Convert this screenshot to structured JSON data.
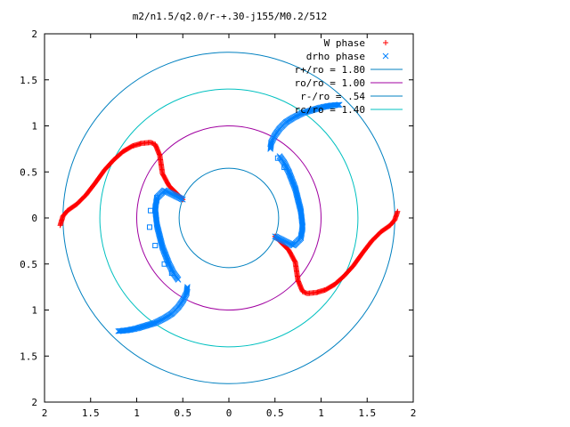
{
  "chart_data": {
    "type": "scatter",
    "title": "m2/n1.5/q2.0/r-+.30-j155/M0.2/512",
    "xlabel": "",
    "ylabel": "",
    "xlim": [
      -2,
      2
    ],
    "ylim": [
      -2,
      2
    ],
    "x_tick_values": [
      -2,
      -1.5,
      -1,
      -0.5,
      0,
      0.5,
      1,
      1.5,
      2
    ],
    "x_tick_labels": [
      "2",
      "1.5",
      "1",
      "0.5",
      "0",
      "0.5",
      "1",
      "1.5",
      "2"
    ],
    "y_tick_values": [
      2,
      1.5,
      1,
      0.5,
      0,
      -0.5,
      -1,
      -1.5,
      -2
    ],
    "y_tick_labels": [
      "2",
      "1.5",
      "1",
      "0.5",
      "0",
      "0.5",
      "1",
      "1.5",
      "2"
    ],
    "grid": false,
    "legend_position": "top-right",
    "legend": [
      {
        "label": "W phase",
        "marker": "plus",
        "color": "#ff0000"
      },
      {
        "label": "drho phase",
        "marker": "x",
        "color": "#0080ff"
      },
      {
        "label": "r+/ro = 1.80",
        "marker": "line",
        "color": "#0080c0"
      },
      {
        "label": "ro/ro = 1.00",
        "marker": "line",
        "color": "#a000a0"
      },
      {
        "label": "r-/ro = .54",
        "marker": "line",
        "color": "#0080c0"
      },
      {
        "label": "rc/ro = 1.40",
        "marker": "line",
        "color": "#00c0c0"
      }
    ],
    "circles": [
      {
        "radius": 1.8,
        "color": "#0080c0"
      },
      {
        "radius": 1.4,
        "color": "#00c0c0"
      },
      {
        "radius": 1.0,
        "color": "#a000a0"
      },
      {
        "radius": 0.54,
        "color": "#0080c0"
      }
    ],
    "series": [
      {
        "name": "W phase",
        "marker": "plus",
        "color": "#ff0000",
        "points": [
          [
            -1.83,
            -0.08
          ],
          [
            -1.8,
            0.02
          ],
          [
            -1.75,
            0.08
          ],
          [
            -1.65,
            0.15
          ],
          [
            -1.55,
            0.25
          ],
          [
            -1.45,
            0.38
          ],
          [
            -1.35,
            0.52
          ],
          [
            -1.25,
            0.63
          ],
          [
            -1.15,
            0.72
          ],
          [
            -1.05,
            0.78
          ],
          [
            -0.95,
            0.81
          ],
          [
            -0.85,
            0.82
          ],
          [
            -0.8,
            0.8
          ],
          [
            -0.75,
            0.68
          ],
          [
            -0.72,
            0.48
          ],
          [
            -0.65,
            0.35
          ],
          [
            -0.58,
            0.28
          ],
          [
            -0.5,
            0.2
          ],
          [
            1.83,
            0.07
          ],
          [
            1.8,
            -0.02
          ],
          [
            1.75,
            -0.08
          ],
          [
            1.65,
            -0.15
          ],
          [
            1.55,
            -0.25
          ],
          [
            1.45,
            -0.38
          ],
          [
            1.35,
            -0.52
          ],
          [
            1.25,
            -0.63
          ],
          [
            1.15,
            -0.72
          ],
          [
            1.05,
            -0.78
          ],
          [
            0.95,
            -0.81
          ],
          [
            0.85,
            -0.82
          ],
          [
            0.8,
            -0.8
          ],
          [
            0.75,
            -0.68
          ],
          [
            0.72,
            -0.48
          ],
          [
            0.65,
            -0.35
          ],
          [
            0.58,
            -0.28
          ],
          [
            0.5,
            -0.2
          ]
        ]
      },
      {
        "name": "drho phase",
        "marker": "x",
        "color": "#0080ff",
        "points": [
          [
            0.45,
            0.75
          ],
          [
            0.46,
            0.82
          ],
          [
            0.5,
            0.9
          ],
          [
            0.55,
            0.97
          ],
          [
            0.62,
            1.04
          ],
          [
            0.7,
            1.09
          ],
          [
            0.8,
            1.14
          ],
          [
            0.9,
            1.17
          ],
          [
            1.0,
            1.2
          ],
          [
            1.1,
            1.22
          ],
          [
            1.2,
            1.23
          ],
          [
            0.55,
            0.67
          ],
          [
            0.6,
            0.6
          ],
          [
            0.65,
            0.5
          ],
          [
            0.72,
            0.32
          ],
          [
            0.78,
            0.08
          ],
          [
            0.8,
            -0.1
          ],
          [
            0.78,
            -0.22
          ],
          [
            0.7,
            -0.3
          ],
          [
            0.6,
            -0.25
          ],
          [
            0.5,
            -0.2
          ],
          [
            -0.45,
            -0.75
          ],
          [
            -0.46,
            -0.82
          ],
          [
            -0.5,
            -0.9
          ],
          [
            -0.55,
            -0.97
          ],
          [
            -0.62,
            -1.04
          ],
          [
            -0.7,
            -1.09
          ],
          [
            -0.8,
            -1.14
          ],
          [
            -0.9,
            -1.17
          ],
          [
            -1.0,
            -1.2
          ],
          [
            -1.1,
            -1.22
          ],
          [
            -1.2,
            -1.23
          ],
          [
            -0.55,
            -0.67
          ],
          [
            -0.6,
            -0.6
          ],
          [
            -0.65,
            -0.5
          ],
          [
            -0.72,
            -0.32
          ],
          [
            -0.78,
            -0.08
          ],
          [
            -0.8,
            0.1
          ],
          [
            -0.78,
            0.22
          ],
          [
            -0.7,
            0.3
          ],
          [
            -0.6,
            0.25
          ],
          [
            -0.5,
            0.2
          ]
        ]
      },
      {
        "name": "drho phase (open squares)",
        "marker": "square",
        "color": "#0080ff",
        "points": [
          [
            -0.85,
            0.08
          ],
          [
            -0.86,
            -0.1
          ],
          [
            -0.8,
            -0.3
          ],
          [
            -0.7,
            -0.5
          ],
          [
            -0.62,
            -0.6
          ],
          [
            -0.78,
            0.22
          ],
          [
            0.53,
            0.65
          ],
          [
            0.6,
            0.55
          ]
        ]
      }
    ]
  }
}
